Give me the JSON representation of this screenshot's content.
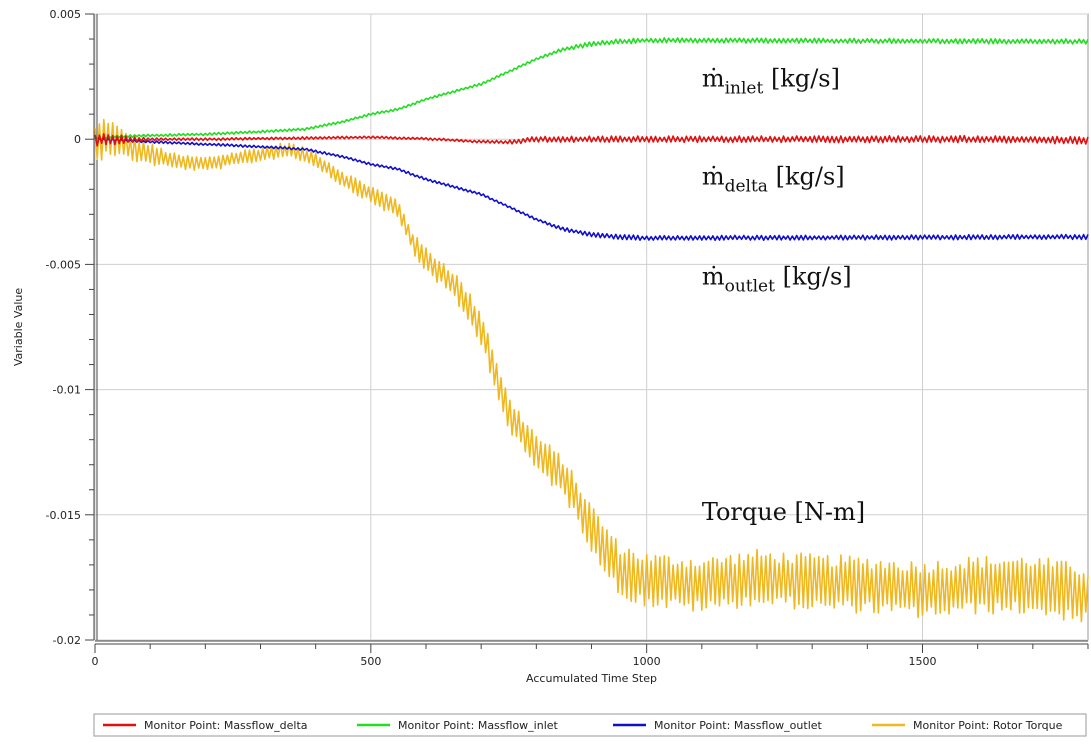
{
  "chart_data": {
    "type": "line",
    "xlabel": "Accumulated Time Step",
    "ylabel": "Variable Value",
    "xlim": [
      0,
      1800
    ],
    "ylim": [
      -0.02,
      0.005
    ],
    "x_ticks": [
      0,
      500,
      1000,
      1500
    ],
    "x_tick_labels": [
      "0",
      "500",
      "1000",
      "1500"
    ],
    "y_ticks": [
      0.005,
      0,
      -0.005,
      -0.01,
      -0.015,
      -0.02
    ],
    "y_tick_labels": [
      "0.005",
      "0",
      "-0.005",
      "-0.01",
      "-0.015",
      "-0.02"
    ],
    "grid": true,
    "legend_position": "bottom",
    "series": [
      {
        "name": "Monitor Point: Massflow_delta",
        "color": "#e01010",
        "points": [
          [
            0,
            0
          ],
          [
            200,
            0
          ],
          [
            400,
            5e-05
          ],
          [
            500,
            8e-05
          ],
          [
            600,
            2e-05
          ],
          [
            700,
            -0.0001
          ],
          [
            750,
            -0.00012
          ],
          [
            800,
            0
          ],
          [
            1000,
            0
          ],
          [
            1200,
            0
          ],
          [
            1400,
            0
          ],
          [
            1600,
            0
          ],
          [
            1800,
            -5e-05
          ]
        ],
        "oscillation": [
          [
            0,
            0.0003
          ],
          [
            100,
            5e-05
          ],
          [
            700,
            5e-05
          ],
          [
            800,
            0.00012
          ],
          [
            1800,
            0.00015
          ]
        ]
      },
      {
        "name": "Monitor Point: Massflow_inlet",
        "color": "#22dd22",
        "points": [
          [
            0,
            0
          ],
          [
            30,
            0.0001
          ],
          [
            100,
            0.00015
          ],
          [
            200,
            0.0002
          ],
          [
            300,
            0.0003
          ],
          [
            380,
            0.0004
          ],
          [
            450,
            0.0007
          ],
          [
            500,
            0.001
          ],
          [
            550,
            0.0012
          ],
          [
            600,
            0.0016
          ],
          [
            650,
            0.0019
          ],
          [
            700,
            0.0022
          ],
          [
            750,
            0.0027
          ],
          [
            800,
            0.0032
          ],
          [
            850,
            0.0036
          ],
          [
            900,
            0.0038
          ],
          [
            950,
            0.0039
          ],
          [
            1000,
            0.00395
          ],
          [
            1800,
            0.0039
          ]
        ],
        "oscillation": [
          [
            0,
            5e-05
          ],
          [
            800,
            5e-05
          ],
          [
            900,
            0.0001
          ],
          [
            1800,
            0.0001
          ]
        ]
      },
      {
        "name": "Monitor Point: Massflow_outlet",
        "color": "#1010cc",
        "points": [
          [
            0,
            0
          ],
          [
            100,
            -0.0001
          ],
          [
            200,
            -0.0002
          ],
          [
            300,
            -0.0003
          ],
          [
            380,
            -0.0004
          ],
          [
            450,
            -0.0007
          ],
          [
            500,
            -0.001
          ],
          [
            550,
            -0.0012
          ],
          [
            600,
            -0.0016
          ],
          [
            650,
            -0.0019
          ],
          [
            700,
            -0.0022
          ],
          [
            750,
            -0.0027
          ],
          [
            800,
            -0.0032
          ],
          [
            850,
            -0.0036
          ],
          [
            900,
            -0.0038
          ],
          [
            950,
            -0.0039
          ],
          [
            1000,
            -0.00395
          ],
          [
            1800,
            -0.0039
          ]
        ],
        "oscillation": [
          [
            0,
            5e-05
          ],
          [
            800,
            5e-05
          ],
          [
            900,
            0.0001
          ],
          [
            1800,
            0.0001
          ]
        ]
      },
      {
        "name": "Monitor Point: Rotor Torque",
        "color": "#f0b820",
        "points": [
          [
            0,
            -0.0003
          ],
          [
            20,
            0.0002
          ],
          [
            50,
            -0.0002
          ],
          [
            100,
            -0.0006
          ],
          [
            150,
            -0.0009
          ],
          [
            200,
            -0.001
          ],
          [
            250,
            -0.0008
          ],
          [
            300,
            -0.0006
          ],
          [
            350,
            -0.0004
          ],
          [
            400,
            -0.0008
          ],
          [
            450,
            -0.0016
          ],
          [
            500,
            -0.0022
          ],
          [
            550,
            -0.0028
          ],
          [
            580,
            -0.0043
          ],
          [
            600,
            -0.0048
          ],
          [
            650,
            -0.0058
          ],
          [
            700,
            -0.0075
          ],
          [
            750,
            -0.011
          ],
          [
            800,
            -0.0125
          ],
          [
            850,
            -0.0135
          ],
          [
            900,
            -0.0155
          ],
          [
            950,
            -0.0172
          ],
          [
            1000,
            -0.0176
          ],
          [
            1100,
            -0.0178
          ],
          [
            1200,
            -0.0175
          ],
          [
            1300,
            -0.0177
          ],
          [
            1400,
            -0.0178
          ],
          [
            1500,
            -0.018
          ],
          [
            1600,
            -0.0178
          ],
          [
            1700,
            -0.0178
          ],
          [
            1800,
            -0.0182
          ]
        ],
        "oscillation": [
          [
            0,
            0.0009
          ],
          [
            50,
            0.0006
          ],
          [
            150,
            0.0003
          ],
          [
            400,
            0.0003
          ],
          [
            550,
            0.0004
          ],
          [
            700,
            0.0007
          ],
          [
            850,
            0.0008
          ],
          [
            950,
            0.0011
          ],
          [
            1800,
            0.0012
          ]
        ]
      }
    ],
    "annotations": [
      {
        "base": "ṁ",
        "sub": "inlet",
        "unit": " [kg/s]",
        "x": 1100,
        "y": 0.0021
      },
      {
        "base": "ṁ",
        "sub": "delta",
        "unit": " [kg/s]",
        "x": 1100,
        "y": -0.0018
      },
      {
        "base": "ṁ",
        "sub": "outlet",
        "unit": " [kg/s]",
        "x": 1100,
        "y": -0.0058
      },
      {
        "base": "Torque [N-m]",
        "sub": "",
        "unit": "",
        "x": 1100,
        "y": -0.0152
      }
    ]
  }
}
